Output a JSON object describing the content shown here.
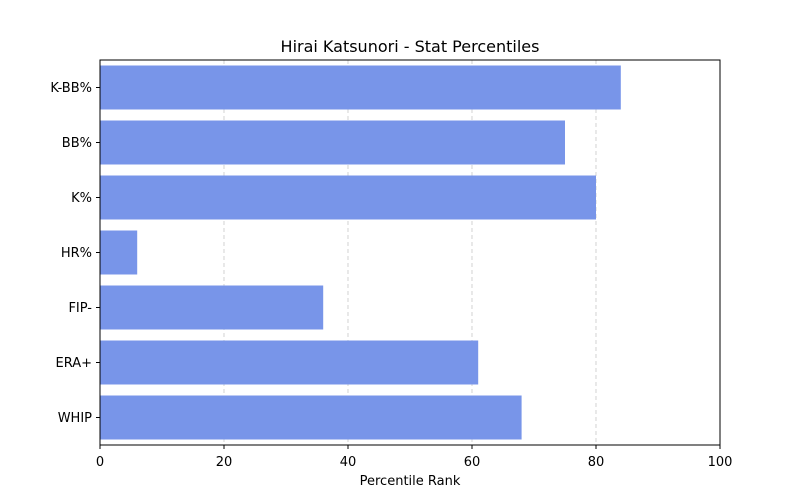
{
  "chart_data": {
    "type": "bar",
    "orientation": "horizontal",
    "title": "Hirai Katsunori - Stat Percentiles",
    "xlabel": "Percentile Rank",
    "ylabel": "",
    "categories": [
      "K-BB%",
      "BB%",
      "K%",
      "HR%",
      "FIP-",
      "ERA+",
      "WHIP"
    ],
    "values": [
      84,
      75,
      80,
      6,
      36,
      61,
      68
    ],
    "xlim": [
      0,
      100
    ],
    "xticks": [
      0,
      20,
      40,
      60,
      80,
      100
    ],
    "grid": "x-dashed",
    "bar_color": "#7895e9"
  }
}
